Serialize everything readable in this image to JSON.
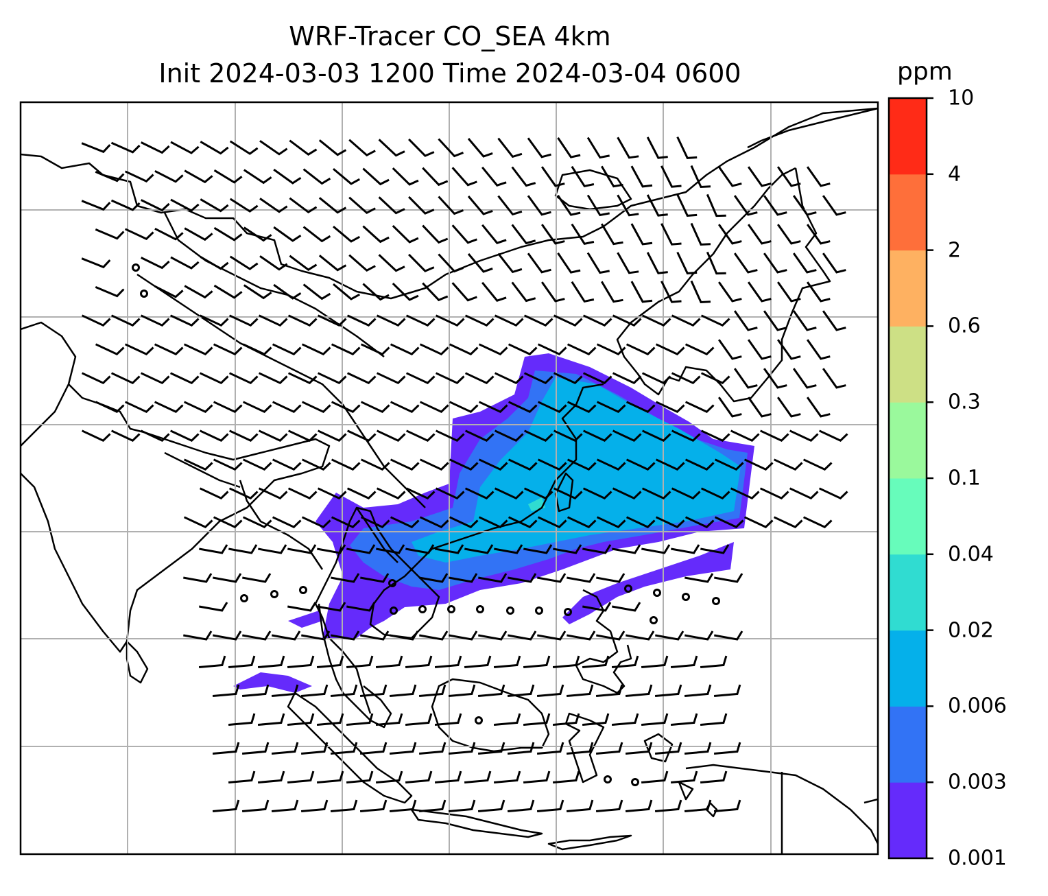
{
  "title_line1": "WRF-Tracer CO_SEA 4km",
  "title_line2": "Init 2024-03-03 1200 Time 2024-03-04 0600",
  "colorbar": {
    "unit": "ppm",
    "levels": [
      "0.001",
      "0.003",
      "0.006",
      "0.02",
      "0.04",
      "0.1",
      "0.3",
      "0.6",
      "2",
      "4",
      "10"
    ],
    "colors": [
      "#652bfb",
      "#3273f5",
      "#05b0ea",
      "#30dcd1",
      "#67fcbb",
      "#9af99c",
      "#cde085",
      "#feb161",
      "#fe6f3a",
      "#ff2b17"
    ]
  },
  "map": {
    "gridlines": true,
    "gridline_color": "#b0b0b0",
    "coastline_color": "#000000",
    "background": "#ffffff",
    "overlay": "wind barbs"
  }
}
